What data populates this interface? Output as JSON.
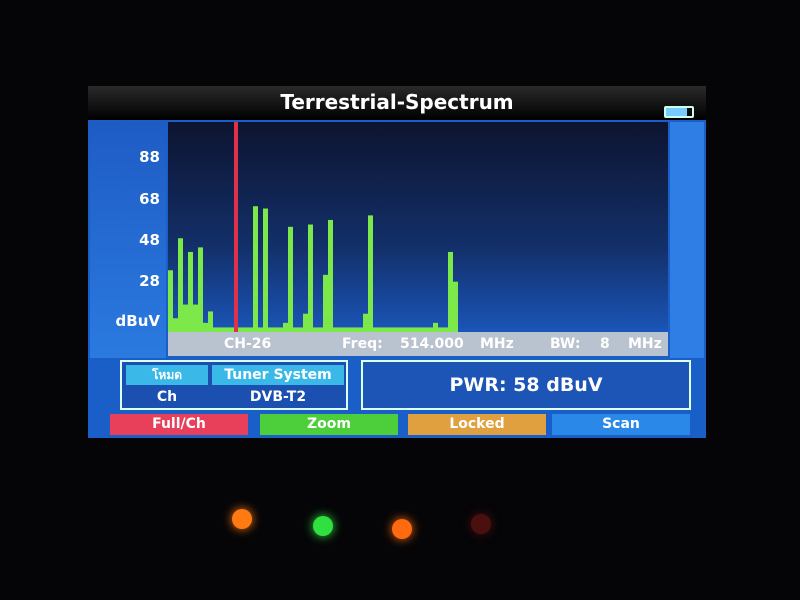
{
  "title": "Terrestrial-Spectrum",
  "icons": {
    "battery": "battery-full-icon"
  },
  "chart_data": {
    "type": "bar",
    "title": "",
    "ylabel": "dBuV",
    "y_ticks": [
      "88",
      "68",
      "48",
      "28"
    ],
    "ylim": [
      8,
      98
    ],
    "floor_level": 10,
    "levels": [
      35,
      14,
      49,
      20,
      43,
      20,
      45,
      12,
      17,
      10,
      10,
      10,
      10,
      10,
      10,
      10,
      10,
      63,
      10,
      62,
      10,
      10,
      10,
      12,
      54,
      10,
      10,
      16,
      55,
      10,
      10,
      33,
      57,
      10,
      10,
      10,
      10,
      10,
      10,
      16,
      59,
      10,
      10,
      10,
      10,
      10,
      10,
      10,
      10,
      10,
      10,
      10,
      10,
      12,
      10,
      10,
      43,
      30
    ],
    "marker_index": 13,
    "marker_color": "#e0304a",
    "bar_color": "#7de84a",
    "grid": false
  },
  "info": {
    "channel": "CH-26",
    "freq_label": "Freq:",
    "freq_value": "514.000",
    "freq_unit": "MHz",
    "bw_label": "BW:",
    "bw_value": "8",
    "bw_unit": "MHz"
  },
  "mode": {
    "mode_label": "โหมด",
    "mode_value": "Ch",
    "tuner_label": "Tuner System",
    "tuner_value": "DVB-T2"
  },
  "power": "PWR: 58 dBuV",
  "buttons": [
    {
      "label": "Full/Ch",
      "color": "#e8405a"
    },
    {
      "label": "Zoom",
      "color": "#4ccf3a"
    },
    {
      "label": "Locked",
      "color": "#e0a040"
    },
    {
      "label": "Scan",
      "color": "#2a88e8"
    }
  ],
  "leds": [
    "#ff7a10",
    "#30e040",
    "#ff6a10",
    "#4a1010"
  ]
}
